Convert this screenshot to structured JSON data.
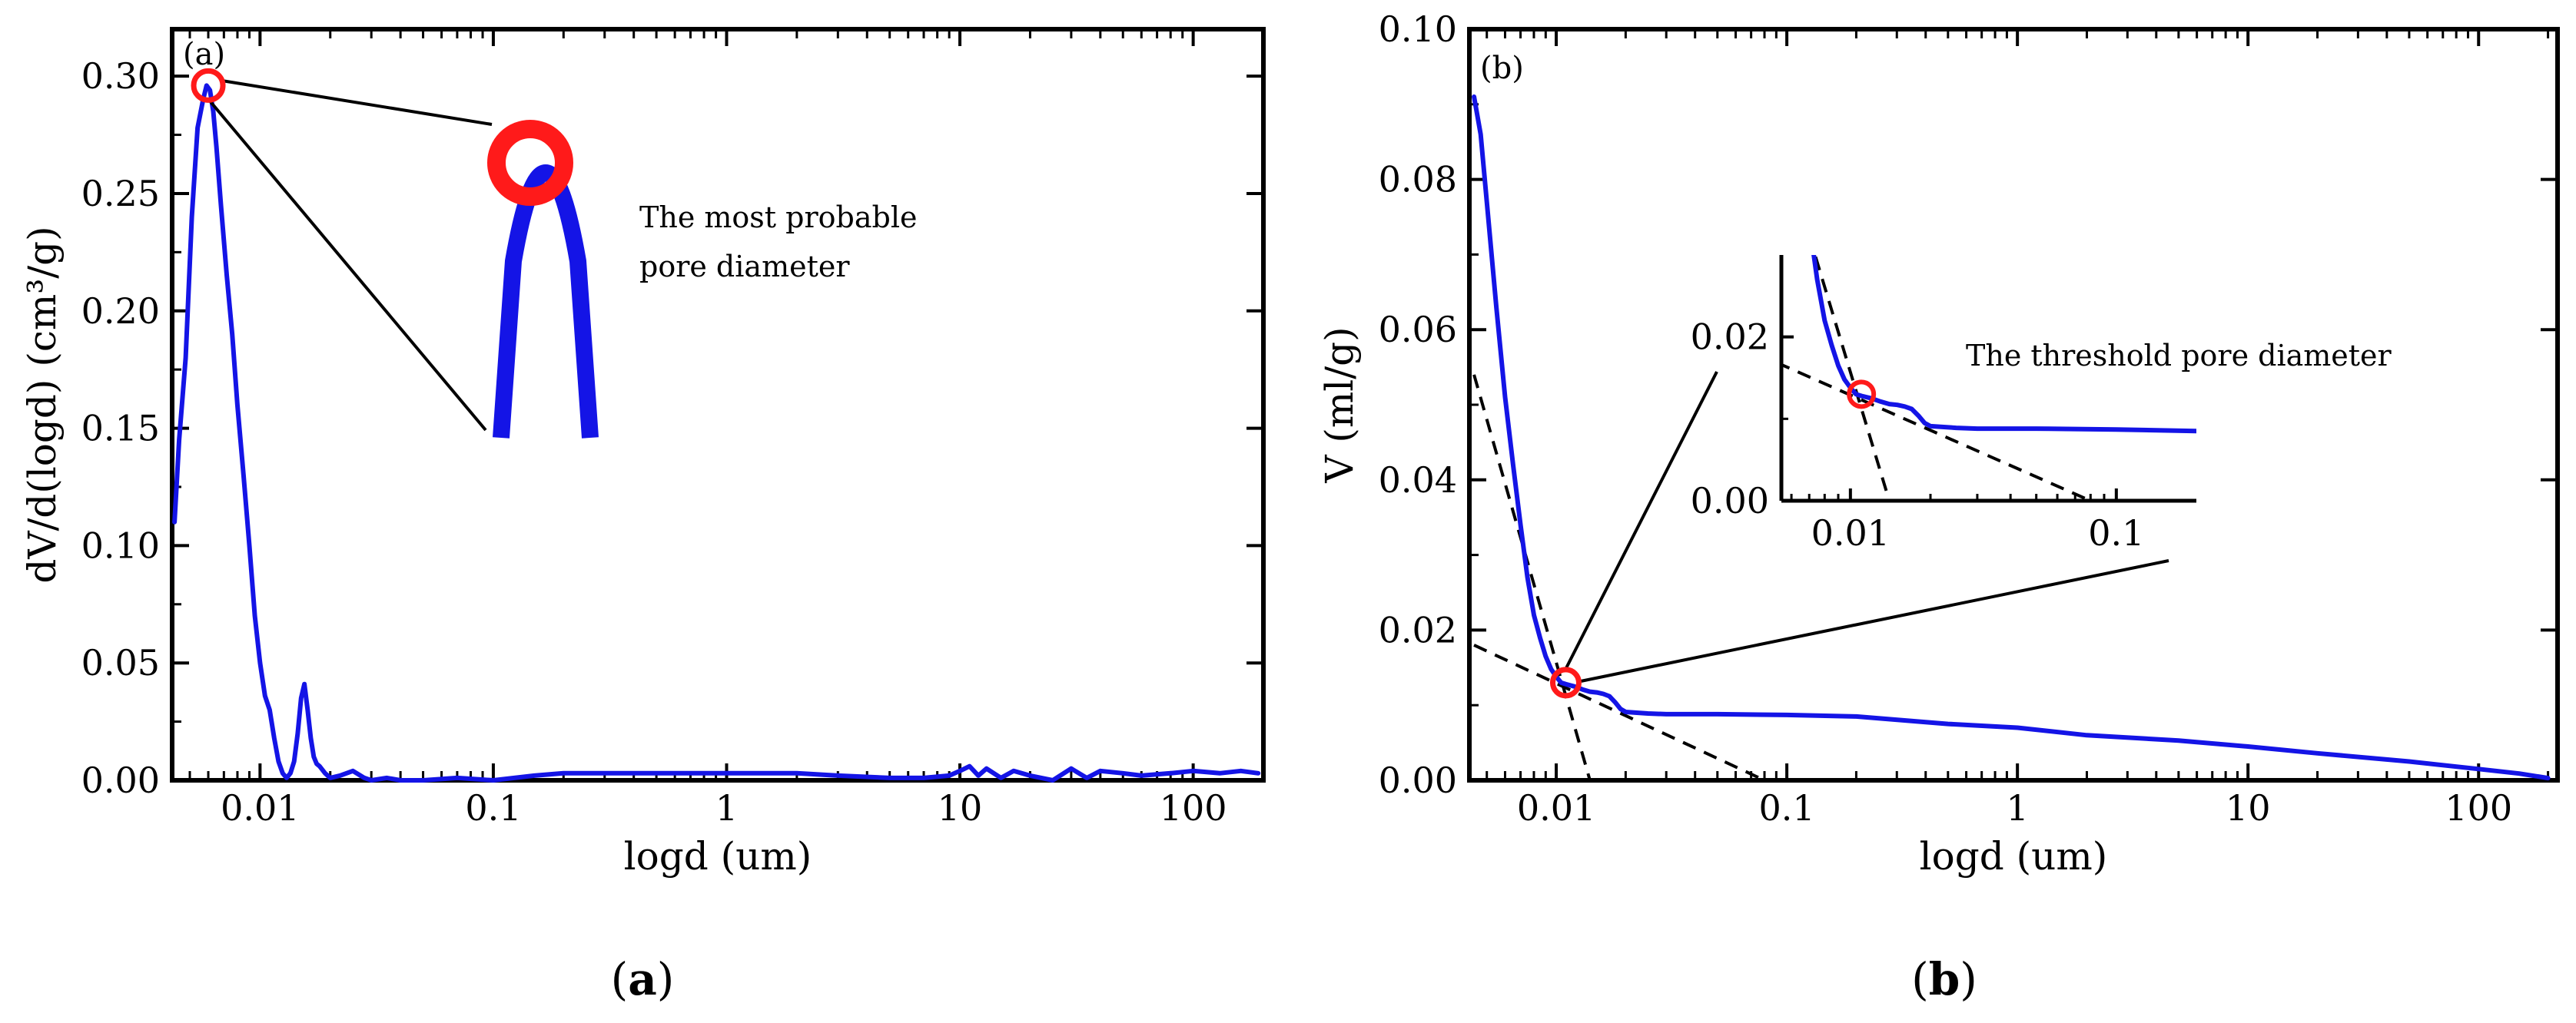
{
  "colors": {
    "series": "#1414e6",
    "highlight": "#ff1a1a",
    "axis": "#000000"
  },
  "chart_data": [
    {
      "type": "line",
      "panel_tag": "(a)",
      "caption": "(a)",
      "xlabel": "logd (um)",
      "ylabel": "dV/d(logd) (cm³/g)",
      "x_scale": "log",
      "xlim": [
        0.0042,
        200
      ],
      "ylim": [
        0,
        0.32
      ],
      "x_ticks": [
        0.01,
        0.1,
        1,
        10,
        100
      ],
      "x_tick_labels": [
        "0.01",
        "0.1",
        "1",
        "10",
        "100"
      ],
      "y_ticks": [
        0,
        0.05,
        0.1,
        0.15,
        0.2,
        0.25,
        0.3
      ],
      "y_tick_labels": [
        "0.00",
        "0.05",
        "0.10",
        "0.15",
        "0.20",
        "0.25",
        "0.30"
      ],
      "annotation": [
        "The most probable",
        "pore diameter"
      ],
      "peak": {
        "x": 0.006,
        "y": 0.296
      },
      "series": [
        {
          "x": [
            0.0043,
            0.0045,
            0.0048,
            0.0051,
            0.0054,
            0.0057,
            0.0059,
            0.0061,
            0.0063,
            0.0065,
            0.0068,
            0.0072,
            0.0076,
            0.008,
            0.0085,
            0.009,
            0.0095,
            0.01,
            0.0105,
            0.011,
            0.0115,
            0.012,
            0.0125,
            0.013,
            0.0135,
            0.014,
            0.0145,
            0.015,
            0.0155,
            0.016,
            0.0165,
            0.017,
            0.0175,
            0.018,
            0.019,
            0.02,
            0.022,
            0.025,
            0.028,
            0.03,
            0.035,
            0.04,
            0.05,
            0.07,
            0.1,
            0.15,
            0.2,
            0.3,
            0.5,
            1,
            2,
            3,
            5,
            7,
            9,
            10,
            11,
            12,
            13,
            15,
            17,
            20,
            25,
            30,
            35,
            40,
            50,
            60,
            80,
            100,
            130,
            160,
            190
          ],
          "y": [
            0.11,
            0.145,
            0.18,
            0.24,
            0.278,
            0.29,
            0.296,
            0.294,
            0.285,
            0.27,
            0.245,
            0.215,
            0.19,
            0.16,
            0.13,
            0.1,
            0.07,
            0.05,
            0.036,
            0.03,
            0.018,
            0.008,
            0.003,
            0.001,
            0.003,
            0.008,
            0.02,
            0.035,
            0.041,
            0.03,
            0.018,
            0.01,
            0.007,
            0.006,
            0.003,
            0.001,
            0.002,
            0.004,
            0.001,
            0.0,
            0.001,
            0.0,
            0.0,
            0.001,
            0.0,
            0.002,
            0.003,
            0.003,
            0.003,
            0.003,
            0.003,
            0.002,
            0.001,
            0.001,
            0.002,
            0.004,
            0.006,
            0.002,
            0.005,
            0.001,
            0.004,
            0.002,
            0.0,
            0.005,
            0.001,
            0.004,
            0.003,
            0.002,
            0.003,
            0.004,
            0.003,
            0.004,
            0.003
          ]
        }
      ]
    },
    {
      "type": "line",
      "panel_tag": "(b)",
      "caption": "(b)",
      "xlabel": "logd (um)",
      "ylabel": "V (ml/g)",
      "x_scale": "log",
      "xlim": [
        0.0042,
        220
      ],
      "ylim": [
        0,
        0.1
      ],
      "x_ticks": [
        0.01,
        0.1,
        1,
        10,
        100
      ],
      "x_tick_labels": [
        "0.01",
        "0.1",
        "1",
        "10",
        "100"
      ],
      "y_ticks": [
        0,
        0.02,
        0.04,
        0.06,
        0.08,
        0.1
      ],
      "y_tick_labels": [
        "0.00",
        "0.02",
        "0.04",
        "0.06",
        "0.08",
        "0.10"
      ],
      "annotation": "The threshold pore diameter",
      "threshold": {
        "x": 0.011,
        "y": 0.013
      },
      "series": [
        {
          "x": [
            0.0044,
            0.0047,
            0.005,
            0.0055,
            0.006,
            0.0065,
            0.007,
            0.0075,
            0.008,
            0.0085,
            0.009,
            0.0095,
            0.01,
            0.0105,
            0.011,
            0.012,
            0.013,
            0.014,
            0.015,
            0.016,
            0.017,
            0.018,
            0.019,
            0.02,
            0.025,
            0.03,
            0.05,
            0.1,
            0.2,
            0.5,
            1,
            2,
            5,
            10,
            20,
            50,
            100,
            150,
            200
          ],
          "y": [
            0.091,
            0.086,
            0.077,
            0.063,
            0.051,
            0.042,
            0.034,
            0.027,
            0.022,
            0.019,
            0.0165,
            0.0148,
            0.0138,
            0.013,
            0.0128,
            0.0125,
            0.0121,
            0.0118,
            0.0117,
            0.0115,
            0.0112,
            0.0104,
            0.0095,
            0.0091,
            0.0089,
            0.0088,
            0.0088,
            0.0087,
            0.0085,
            0.0075,
            0.007,
            0.006,
            0.0053,
            0.0045,
            0.0036,
            0.0025,
            0.0015,
            0.0009,
            0.0003
          ]
        }
      ],
      "tangent_lines": [
        {
          "x": [
            0.0044,
            0.014
          ],
          "y": [
            0.054,
            0.0
          ]
        },
        {
          "x": [
            0.0044,
            0.08
          ],
          "y": [
            0.018,
            0.0
          ]
        }
      ],
      "inset": {
        "xlim": [
          0.0055,
          0.2
        ],
        "ylim": [
          0,
          0.03
        ],
        "x_ticks": [
          0.01,
          0.1
        ],
        "x_tick_labels": [
          "0.01",
          "0.1"
        ],
        "y_ticks": [
          0,
          0.02
        ],
        "y_tick_labels": [
          "0.00",
          "0.02"
        ]
      }
    }
  ]
}
